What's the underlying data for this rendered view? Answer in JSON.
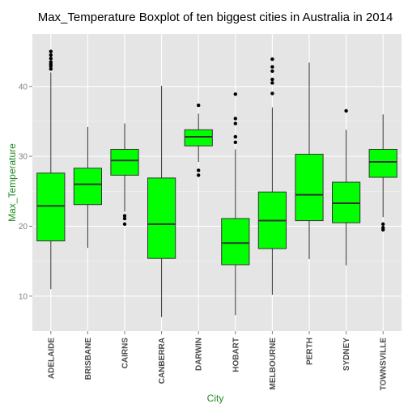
{
  "chart_data": {
    "type": "boxplot",
    "title": "Max_Temperature Boxplot of ten biggest cities in Australia in 2014",
    "xlabel": "City",
    "ylabel": "Max_Temperature",
    "ylim": [
      5,
      47.5
    ],
    "yticks": [
      10,
      20,
      30,
      40
    ],
    "grid": true,
    "box_color": "#00FF00",
    "label_color": "#228B22",
    "panel_color": "#E5E5E5",
    "categories": [
      "ADELAIDE",
      "BRISBANE",
      "CAIRNS",
      "CANBERRA",
      "DARWIN",
      "HOBART",
      "MELBOURNE",
      "PERTH",
      "SYDNEY",
      "TOWNSVILLE"
    ],
    "boxes": [
      {
        "min": 11.0,
        "q1": 17.9,
        "median": 22.9,
        "q3": 27.6,
        "max": 42.0,
        "outliers": [
          42.5,
          42.9,
          43.2,
          43.5,
          44.0,
          44.5,
          45.0
        ]
      },
      {
        "min": 16.9,
        "q1": 23.1,
        "median": 26.0,
        "q3": 28.3,
        "max": 34.2,
        "outliers": []
      },
      {
        "min": 22.1,
        "q1": 27.3,
        "median": 29.4,
        "q3": 31.0,
        "max": 34.7,
        "outliers": [
          21.5,
          21.1,
          20.3
        ]
      },
      {
        "min": 7.0,
        "q1": 15.4,
        "median": 20.3,
        "q3": 26.9,
        "max": 40.1,
        "outliers": []
      },
      {
        "min": 29.2,
        "q1": 31.5,
        "median": 32.8,
        "q3": 33.8,
        "max": 36.1,
        "outliers": [
          37.3,
          28.0,
          27.3
        ]
      },
      {
        "min": 7.3,
        "q1": 14.5,
        "median": 17.6,
        "q3": 21.1,
        "max": 31.0,
        "outliers": [
          32.0,
          32.8,
          34.7,
          35.4,
          38.9
        ]
      },
      {
        "min": 10.2,
        "q1": 16.8,
        "median": 20.8,
        "q3": 24.9,
        "max": 37.0,
        "outliers": [
          39.0,
          40.5,
          41.0,
          42.2,
          42.8,
          43.9
        ]
      },
      {
        "min": 15.3,
        "q1": 20.8,
        "median": 24.5,
        "q3": 30.3,
        "max": 43.4,
        "outliers": []
      },
      {
        "min": 14.4,
        "q1": 20.5,
        "median": 23.3,
        "q3": 26.3,
        "max": 33.8,
        "outliers": [
          36.5
        ]
      },
      {
        "min": 21.3,
        "q1": 27.0,
        "median": 29.2,
        "q3": 31.0,
        "max": 36.0,
        "outliers": [
          20.3,
          19.8,
          19.5
        ]
      }
    ]
  }
}
